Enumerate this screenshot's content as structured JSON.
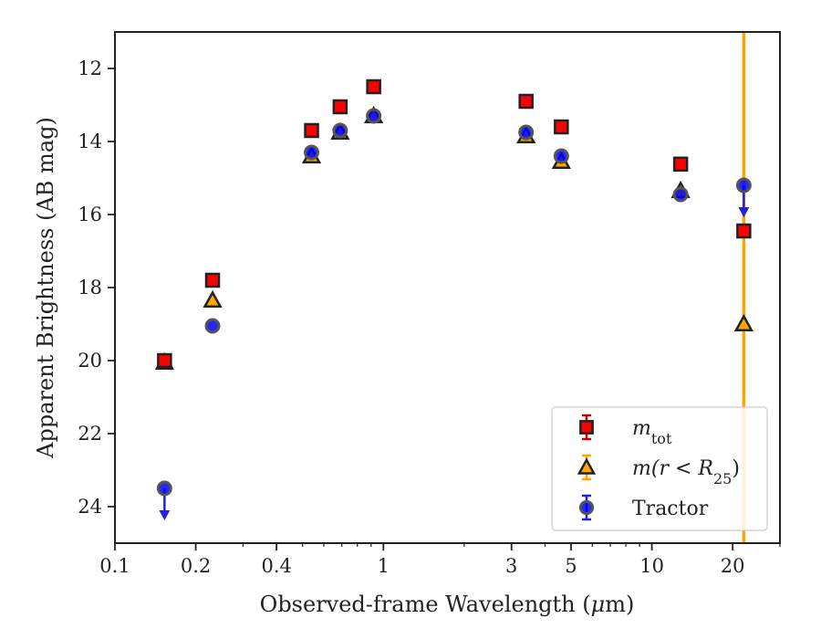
{
  "chart_data": {
    "type": "scatter",
    "xlabel": "Observed-frame Wavelength (",
    "xlabel_symbol": "μ",
    "xlabel_unit": "m)",
    "ylabel": "Apparent Brightness (AB mag)",
    "xscale": "log",
    "xlim": [
      0.1,
      30
    ],
    "ylim": [
      25,
      11
    ],
    "y_inverted": true,
    "x_ticks": [
      0.1,
      0.2,
      0.4,
      1,
      3,
      5,
      10,
      20
    ],
    "x_tick_labels": [
      "0.1",
      "0.2",
      "0.4",
      "1",
      "3",
      "5",
      "10",
      "20"
    ],
    "y_ticks": [
      12,
      14,
      16,
      18,
      20,
      22,
      24
    ],
    "y_tick_labels": [
      "12",
      "14",
      "16",
      "18",
      "20",
      "22",
      "24"
    ],
    "legend_position": "lower-right",
    "series": [
      {
        "legend_label": "m",
        "legend_sub": "tot",
        "marker": "square",
        "color": "#ff0000",
        "points": [
          {
            "x": 0.153,
            "y": 20.0
          },
          {
            "x": 0.231,
            "y": 17.8
          },
          {
            "x": 0.54,
            "y": 13.7
          },
          {
            "x": 0.69,
            "y": 13.05
          },
          {
            "x": 0.92,
            "y": 12.5
          },
          {
            "x": 3.4,
            "y": 12.9
          },
          {
            "x": 4.6,
            "y": 13.6
          },
          {
            "x": 12.8,
            "y": 14.62
          },
          {
            "x": 22.0,
            "y": 16.45
          }
        ]
      },
      {
        "legend_label": "m(r < R",
        "legend_sub": "25",
        "legend_suffix": ")",
        "marker": "triangle",
        "color": "#ffa500",
        "points": [
          {
            "x": 0.153,
            "y": 20.05
          },
          {
            "x": 0.231,
            "y": 18.35
          },
          {
            "x": 0.54,
            "y": 14.4
          },
          {
            "x": 0.69,
            "y": 13.75
          },
          {
            "x": 0.92,
            "y": 13.3
          },
          {
            "x": 3.4,
            "y": 13.85
          },
          {
            "x": 4.6,
            "y": 14.55
          },
          {
            "x": 12.8,
            "y": 15.35
          },
          {
            "x": 22.0,
            "y": 19.0
          }
        ]
      },
      {
        "legend_label": "Tractor",
        "marker": "circle",
        "color": "#0000ff",
        "points": [
          {
            "x": 0.153,
            "y": 23.5,
            "upper_limit": true
          },
          {
            "x": 0.231,
            "y": 19.05
          },
          {
            "x": 0.54,
            "y": 14.3
          },
          {
            "x": 0.69,
            "y": 13.7
          },
          {
            "x": 0.92,
            "y": 13.3
          },
          {
            "x": 3.4,
            "y": 13.75
          },
          {
            "x": 4.6,
            "y": 14.4
          },
          {
            "x": 12.8,
            "y": 15.45
          },
          {
            "x": 22.0,
            "y": 15.2,
            "upper_limit": true
          }
        ]
      }
    ],
    "vertical_line": {
      "x": 22.0,
      "color": "#ffa500"
    }
  }
}
